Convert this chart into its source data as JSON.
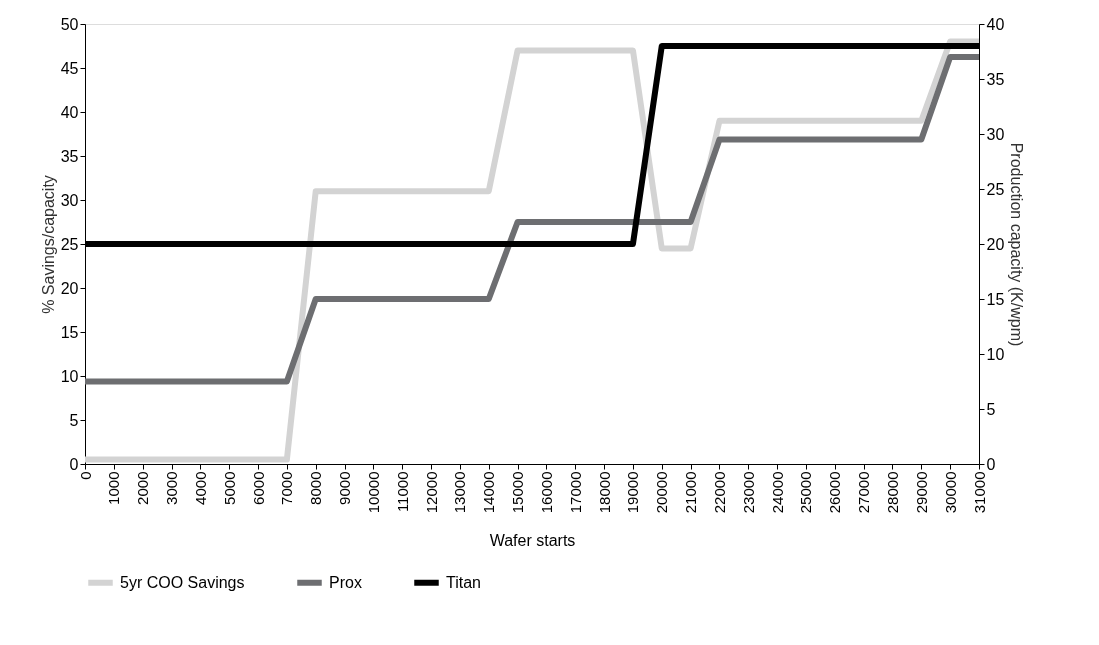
{
  "chart_data": {
    "type": "line",
    "xlabel": "Wafer starts",
    "ylabel": "% Savings/capacity",
    "y2label": "Production capacity (K/wpm)",
    "x": [
      0,
      1000,
      2000,
      3000,
      4000,
      5000,
      6000,
      7000,
      8000,
      9000,
      10000,
      11000,
      12000,
      13000,
      14000,
      15000,
      16000,
      17000,
      18000,
      19000,
      20000,
      21000,
      22000,
      23000,
      24000,
      25000,
      26000,
      27000,
      28000,
      29000,
      30000,
      31000
    ],
    "xlim": [
      0,
      31000
    ],
    "xticks": [
      0,
      1000,
      2000,
      3000,
      4000,
      5000,
      6000,
      7000,
      8000,
      9000,
      10000,
      11000,
      12000,
      13000,
      14000,
      15000,
      16000,
      17000,
      18000,
      19000,
      20000,
      21000,
      22000,
      23000,
      24000,
      25000,
      26000,
      27000,
      28000,
      29000,
      30000,
      31000
    ],
    "ylim": [
      0,
      50
    ],
    "yticks": [
      0,
      5,
      10,
      15,
      20,
      25,
      30,
      35,
      40,
      45,
      50
    ],
    "y2lim": [
      0,
      40
    ],
    "y2ticks": [
      0,
      5,
      10,
      15,
      20,
      25,
      30,
      35,
      40
    ],
    "series": [
      {
        "name": "5yr COO Savings",
        "color": "#d3d3d3",
        "values": [
          0.5,
          0.5,
          0.5,
          0.5,
          0.5,
          0.5,
          0.5,
          0.5,
          31,
          31,
          31,
          31,
          31,
          31,
          31,
          47,
          47,
          47,
          47,
          47,
          24.5,
          24.5,
          39,
          39,
          39,
          39,
          39,
          39,
          39,
          39,
          48,
          48
        ]
      },
      {
        "name": "Prox",
        "color": "#6d6e71",
        "axis": "y2",
        "values": [
          7.5,
          7.5,
          7.5,
          7.5,
          7.5,
          7.5,
          7.5,
          7.5,
          15,
          15,
          15,
          15,
          15,
          15,
          15,
          22,
          22,
          22,
          22,
          22,
          22,
          22,
          29.5,
          29.5,
          29.5,
          29.5,
          29.5,
          29.5,
          29.5,
          29.5,
          37,
          37
        ]
      },
      {
        "name": "Titan",
        "color": "#000000",
        "axis": "y2",
        "values": [
          20,
          20,
          20,
          20,
          20,
          20,
          20,
          20,
          20,
          20,
          20,
          20,
          20,
          20,
          20,
          20,
          20,
          20,
          20,
          20,
          38,
          38,
          38,
          38,
          38,
          38,
          38,
          38,
          38,
          38,
          38,
          38
        ]
      }
    ],
    "grid": false,
    "legend": "bottom",
    "marker": "none",
    "line_style": "solid"
  }
}
